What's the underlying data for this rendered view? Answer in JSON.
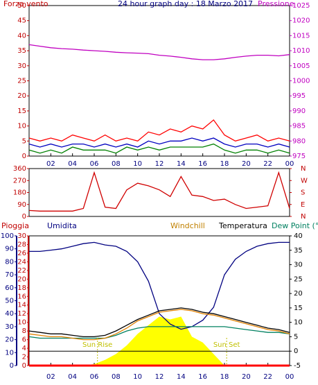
{
  "chart_data": [
    {
      "type": "line",
      "headers": [
        {
          "text": "Forza vento",
          "color": "#c00000"
        },
        {
          "text": "24 hour graph day : 18 Marzo 2017",
          "color": "#000080"
        },
        {
          "text": "Pressione",
          "color": "#c000c0"
        }
      ],
      "x": [
        0,
        1,
        2,
        3,
        4,
        5,
        6,
        7,
        8,
        9,
        10,
        11,
        12,
        13,
        14,
        15,
        16,
        17,
        18,
        19,
        20,
        21,
        22,
        23,
        24
      ],
      "xlim": [
        0,
        24
      ],
      "xticks": [
        {
          "value": 2,
          "label": "02"
        },
        {
          "value": 4,
          "label": "04"
        },
        {
          "value": 6,
          "label": "06"
        },
        {
          "value": 8,
          "label": "08"
        },
        10,
        12,
        14,
        16,
        18,
        20,
        22,
        {
          "value": 24,
          "label": "00"
        }
      ],
      "ylim": [
        0,
        50
      ],
      "yticks": [
        0,
        5,
        10,
        15,
        20,
        25,
        30,
        35,
        40,
        45,
        50
      ],
      "ycolor": "#c00000",
      "y2lim": [
        975,
        1025
      ],
      "y2ticks": [
        975,
        980,
        985,
        990,
        995,
        1000,
        1005,
        1010,
        1015,
        1020,
        1025
      ],
      "y2color": "#c000c0",
      "series": [
        {
          "color": "#ff0000",
          "values": [
            6,
            5,
            6,
            5,
            7,
            6,
            5,
            7,
            5,
            6,
            5,
            8,
            7,
            9,
            8,
            10,
            9,
            12,
            7,
            5,
            6,
            7,
            5,
            6,
            5
          ]
        },
        {
          "color": "#0000c0",
          "values": [
            4,
            3,
            4,
            3,
            4,
            4,
            3,
            4,
            3,
            4,
            3,
            5,
            4,
            5,
            5,
            6,
            5,
            6,
            4,
            3,
            4,
            4,
            3,
            4,
            3
          ]
        },
        {
          "color": "#008000",
          "values": [
            2,
            1,
            2,
            1,
            3,
            2,
            2,
            2,
            1,
            3,
            2,
            3,
            2,
            3,
            3,
            3,
            3,
            4,
            2,
            1,
            2,
            2,
            1,
            2,
            1
          ]
        },
        {
          "color": "#c000c0",
          "axis": "y2",
          "values": [
            1012,
            1011.5,
            1011,
            1010.7,
            1010.5,
            1010.2,
            1010,
            1009.8,
            1009.5,
            1009.3,
            1009.2,
            1009,
            1008.5,
            1008.2,
            1007.8,
            1007.3,
            1007,
            1007,
            1007.3,
            1007.8,
            1008.2,
            1008.5,
            1008.5,
            1008.3,
            1008.7
          ]
        }
      ]
    },
    {
      "type": "line",
      "headers": [],
      "x": [
        0,
        1,
        2,
        3,
        4,
        5,
        6,
        7,
        8,
        9,
        10,
        11,
        12,
        13,
        14,
        15,
        16,
        17,
        18,
        19,
        20,
        21,
        22,
        23,
        24
      ],
      "xlim": [
        0,
        24
      ],
      "ylim": [
        0,
        360
      ],
      "yticks": [
        0,
        90,
        180,
        270,
        360
      ],
      "ycolor": "#c00000",
      "y2lim": [
        0,
        360
      ],
      "y2ticks": [
        {
          "value": 0,
          "label": "N"
        },
        {
          "value": 90,
          "label": "E"
        },
        {
          "value": 180,
          "label": "S"
        },
        {
          "value": 270,
          "label": "W"
        },
        {
          "value": 360,
          "label": "N"
        }
      ],
      "y2color": "#c00000",
      "series": [
        {
          "color": "#d00000",
          "values": [
            45,
            40,
            40,
            40,
            40,
            60,
            330,
            70,
            60,
            200,
            250,
            230,
            200,
            150,
            300,
            160,
            150,
            120,
            130,
            90,
            60,
            70,
            80,
            330,
            60
          ]
        }
      ]
    },
    {
      "type": "line",
      "headers": [
        {
          "text": "Pioggia",
          "color": "#c00000"
        },
        {
          "text": "Umidita",
          "color": "#000080"
        },
        {
          "text": "Windchill",
          "color": "#c08000"
        },
        {
          "text": "Temperatura",
          "color": "#000000"
        },
        {
          "text": "Dew Point (°C",
          "color": "#008060"
        }
      ],
      "x": [
        0,
        1,
        2,
        3,
        4,
        5,
        6,
        7,
        8,
        9,
        10,
        11,
        12,
        13,
        14,
        15,
        16,
        17,
        18,
        19,
        20,
        21,
        22,
        23,
        24
      ],
      "xlim": [
        0,
        24
      ],
      "xticks": [
        {
          "value": 2,
          "label": "02"
        },
        {
          "value": 4,
          "label": "04"
        },
        {
          "value": 6,
          "label": "06"
        },
        {
          "value": 8,
          "label": "08"
        },
        10,
        12,
        14,
        16,
        18,
        20,
        22,
        {
          "value": 24,
          "label": "00"
        }
      ],
      "ylim": [
        0,
        100
      ],
      "yticks": [
        0,
        10,
        20,
        30,
        40,
        50,
        60,
        70,
        80,
        90,
        100
      ],
      "ycolor": "#000080",
      "rainlim": [
        0,
        30
      ],
      "rainticks": [
        0,
        2,
        4,
        6,
        8,
        10,
        12,
        14,
        16,
        18,
        20,
        22,
        24,
        26,
        28,
        30
      ],
      "raincolor": "#c00000",
      "y2lim": [
        -5,
        40
      ],
      "y2ticks": [
        -5,
        0,
        5,
        10,
        15,
        20,
        25,
        30,
        35,
        40
      ],
      "y2color": "#000000",
      "annotations": [
        {
          "text": "Sun Rise",
          "x": 6.3
        },
        {
          "text": "Sun Set",
          "x": 18.2
        }
      ],
      "series": [
        {
          "color": "#ffff00",
          "axis": "y2",
          "area": true,
          "values": [
            -5,
            -5,
            -5,
            -5,
            -5,
            -5,
            -4.5,
            -3,
            -1,
            2,
            6,
            9,
            12,
            11,
            12,
            5,
            3,
            -1,
            -5,
            -5,
            -5,
            -5,
            -5,
            -5,
            -5
          ]
        },
        {
          "color": "#ff0000",
          "axis": "rain",
          "values": [
            0,
            0,
            0,
            0,
            0,
            0,
            0,
            0,
            0,
            0,
            0,
            0,
            0,
            0,
            0,
            0,
            0,
            0,
            0,
            0,
            0,
            0,
            0,
            0,
            0
          ]
        },
        {
          "color": "#000080",
          "values": [
            88,
            88,
            89,
            90,
            92,
            94,
            95,
            93,
            92,
            88,
            80,
            65,
            40,
            32,
            28,
            30,
            35,
            45,
            70,
            82,
            88,
            92,
            94,
            95,
            95
          ]
        },
        {
          "color": "#008060",
          "axis": "y2",
          "values": [
            5,
            4.5,
            4.5,
            4.5,
            4.5,
            4.5,
            4.5,
            4.5,
            5.5,
            7,
            8,
            8.5,
            8.5,
            8.5,
            8.5,
            8.5,
            8.5,
            8.5,
            8.5,
            8,
            7.5,
            7,
            6.5,
            6.5,
            6
          ]
        },
        {
          "color": "#e08000",
          "axis": "y2",
          "values": [
            6,
            5.5,
            5,
            5,
            4.5,
            4,
            4,
            4.5,
            6,
            8,
            10.5,
            12,
            13.5,
            14,
            14.5,
            14,
            13,
            12.5,
            11.5,
            10.5,
            9.5,
            8.5,
            7.5,
            7,
            6
          ]
        },
        {
          "color": "#000000",
          "axis": "y2",
          "values": [
            7,
            6.5,
            6,
            6,
            5.5,
            5,
            5,
            5.5,
            7,
            9,
            11,
            12.5,
            14,
            14.5,
            15,
            14.5,
            13.5,
            13,
            12,
            11,
            10,
            9,
            8,
            7.5,
            6.5
          ]
        }
      ]
    }
  ]
}
